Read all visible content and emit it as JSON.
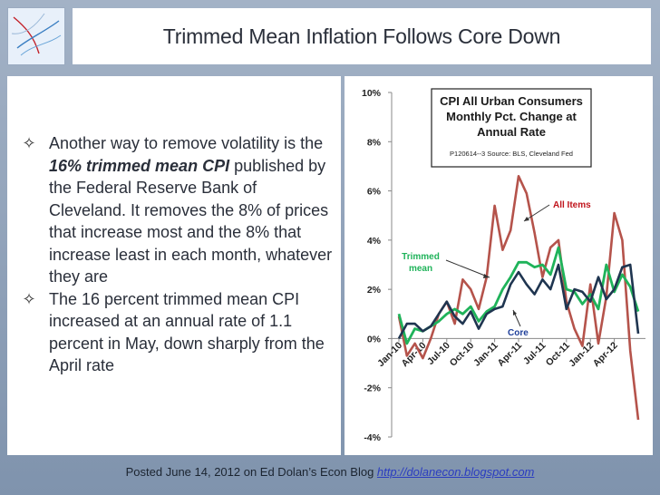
{
  "slide": {
    "title": "Trimmed Mean Inflation Follows Core Down",
    "bullets": [
      {
        "pre": "Another way to remove volatility is the ",
        "emph": "16% trimmed mean CPI",
        "post": " published by the Federal Reserve Bank of Cleveland. It removes the 8% of prices that increase most and the 8% that increase least in each month, whatever they are"
      },
      {
        "pre": "The 16 percent trimmed mean CPI increased at an annual rate of 1.1 percent in May, down sharply from the April rate",
        "emph": "",
        "post": ""
      }
    ],
    "footer_text": "Posted June 14, 2012 on Ed Dolan’s Econ Blog ",
    "footer_link": "http://dolanecon.blogspot.com",
    "bullet_icon": "diamond-outline-icon"
  },
  "chart_data": {
    "type": "line",
    "title_lines": [
      "CPI All Urban Consumers",
      "Monthly Pct. Change at",
      "Annual Rate"
    ],
    "source": "P120614--3 Source: BLS, Cleveland Fed",
    "yticks": [
      "-4%",
      "-2%",
      "0%",
      "2%",
      "4%",
      "6%",
      "8%",
      "10%"
    ],
    "ylim": [
      -4,
      10
    ],
    "xticks": [
      "Jan-10",
      "Apr-10",
      "Jul-10",
      "Oct-10",
      "Jan-11",
      "Apr-11",
      "Jul-11",
      "Oct-11",
      "Jan-12",
      "Apr-12"
    ],
    "annotations": {
      "all_items": "All Items",
      "trimmed": [
        "Trimmed",
        "mean"
      ],
      "core": "Core"
    },
    "colors": {
      "all_items": "#b5534b",
      "trimmed": "#1fb35a",
      "core": "#1f3550",
      "title_text": "#1a1a1a",
      "label_red": "#c0141c",
      "label_green": "#1fb35a",
      "label_blue": "#1f3f9a"
    },
    "series": [
      {
        "name": "All Items",
        "values": [
          0.9,
          -0.7,
          -0.2,
          -0.8,
          0.0,
          1.0,
          1.5,
          0.6,
          2.4,
          2.0,
          1.2,
          2.5,
          5.4,
          3.6,
          4.4,
          6.6,
          5.9,
          4.3,
          2.5,
          3.7,
          4.0,
          1.5,
          0.4,
          -0.3,
          2.2,
          -0.2,
          1.7,
          5.1,
          4.0,
          -0.5,
          -3.3
        ]
      },
      {
        "name": "Trimmed mean",
        "values": [
          1.0,
          -0.2,
          0.4,
          0.3,
          0.5,
          0.7,
          1.0,
          1.2,
          1.0,
          1.3,
          0.7,
          1.1,
          1.3,
          2.0,
          2.5,
          3.1,
          3.1,
          2.9,
          3.0,
          2.6,
          3.7,
          2.0,
          1.9,
          1.4,
          1.8,
          1.2,
          3.0,
          1.9,
          2.6,
          2.1,
          1.1
        ]
      },
      {
        "name": "Core",
        "values": [
          0.0,
          0.6,
          0.6,
          0.3,
          0.5,
          1.0,
          1.5,
          0.9,
          0.6,
          1.1,
          0.4,
          1.0,
          1.2,
          1.3,
          2.2,
          2.7,
          2.2,
          1.8,
          2.4,
          2.0,
          3.0,
          1.2,
          2.0,
          1.9,
          1.5,
          2.5,
          1.6,
          2.0,
          2.9,
          3.0,
          0.2
        ]
      }
    ]
  }
}
